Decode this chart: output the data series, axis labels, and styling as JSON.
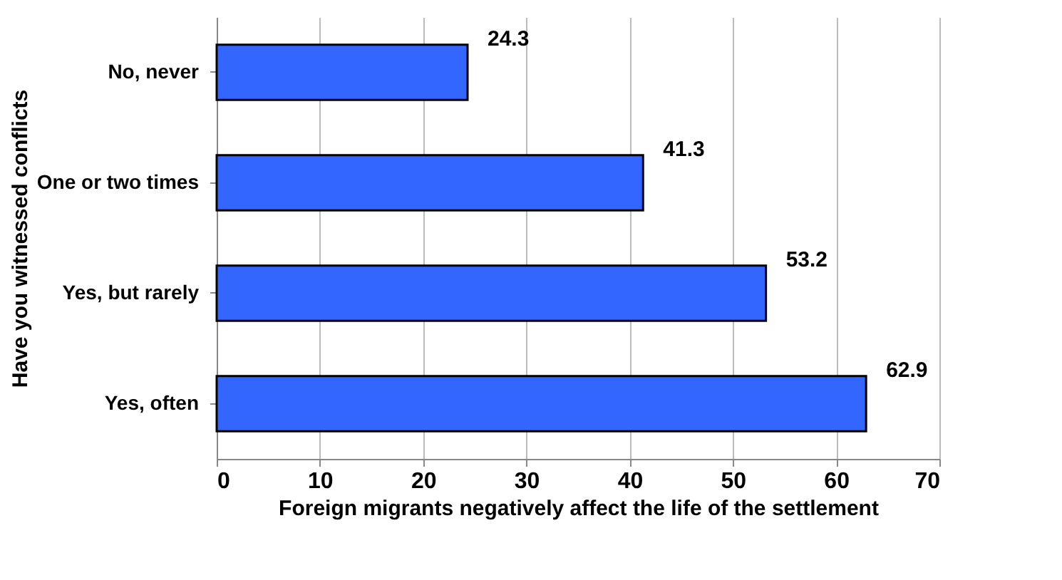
{
  "chart_data": {
    "type": "bar",
    "orientation": "horizontal",
    "categories": [
      "No, never",
      "One or two times",
      "Yes, but rarely",
      "Yes, often"
    ],
    "values": [
      24.3,
      41.3,
      53.2,
      62.9
    ],
    "color": "#3366ff",
    "xlabel": "Foreign migrants negatively affect the life of the settlement",
    "ylabel": "Have you witnessed conflicts",
    "xlim": [
      0,
      70
    ],
    "xticks": [
      0,
      10,
      20,
      30,
      40,
      50,
      60,
      70
    ],
    "grid": "x",
    "data_labels": true
  }
}
